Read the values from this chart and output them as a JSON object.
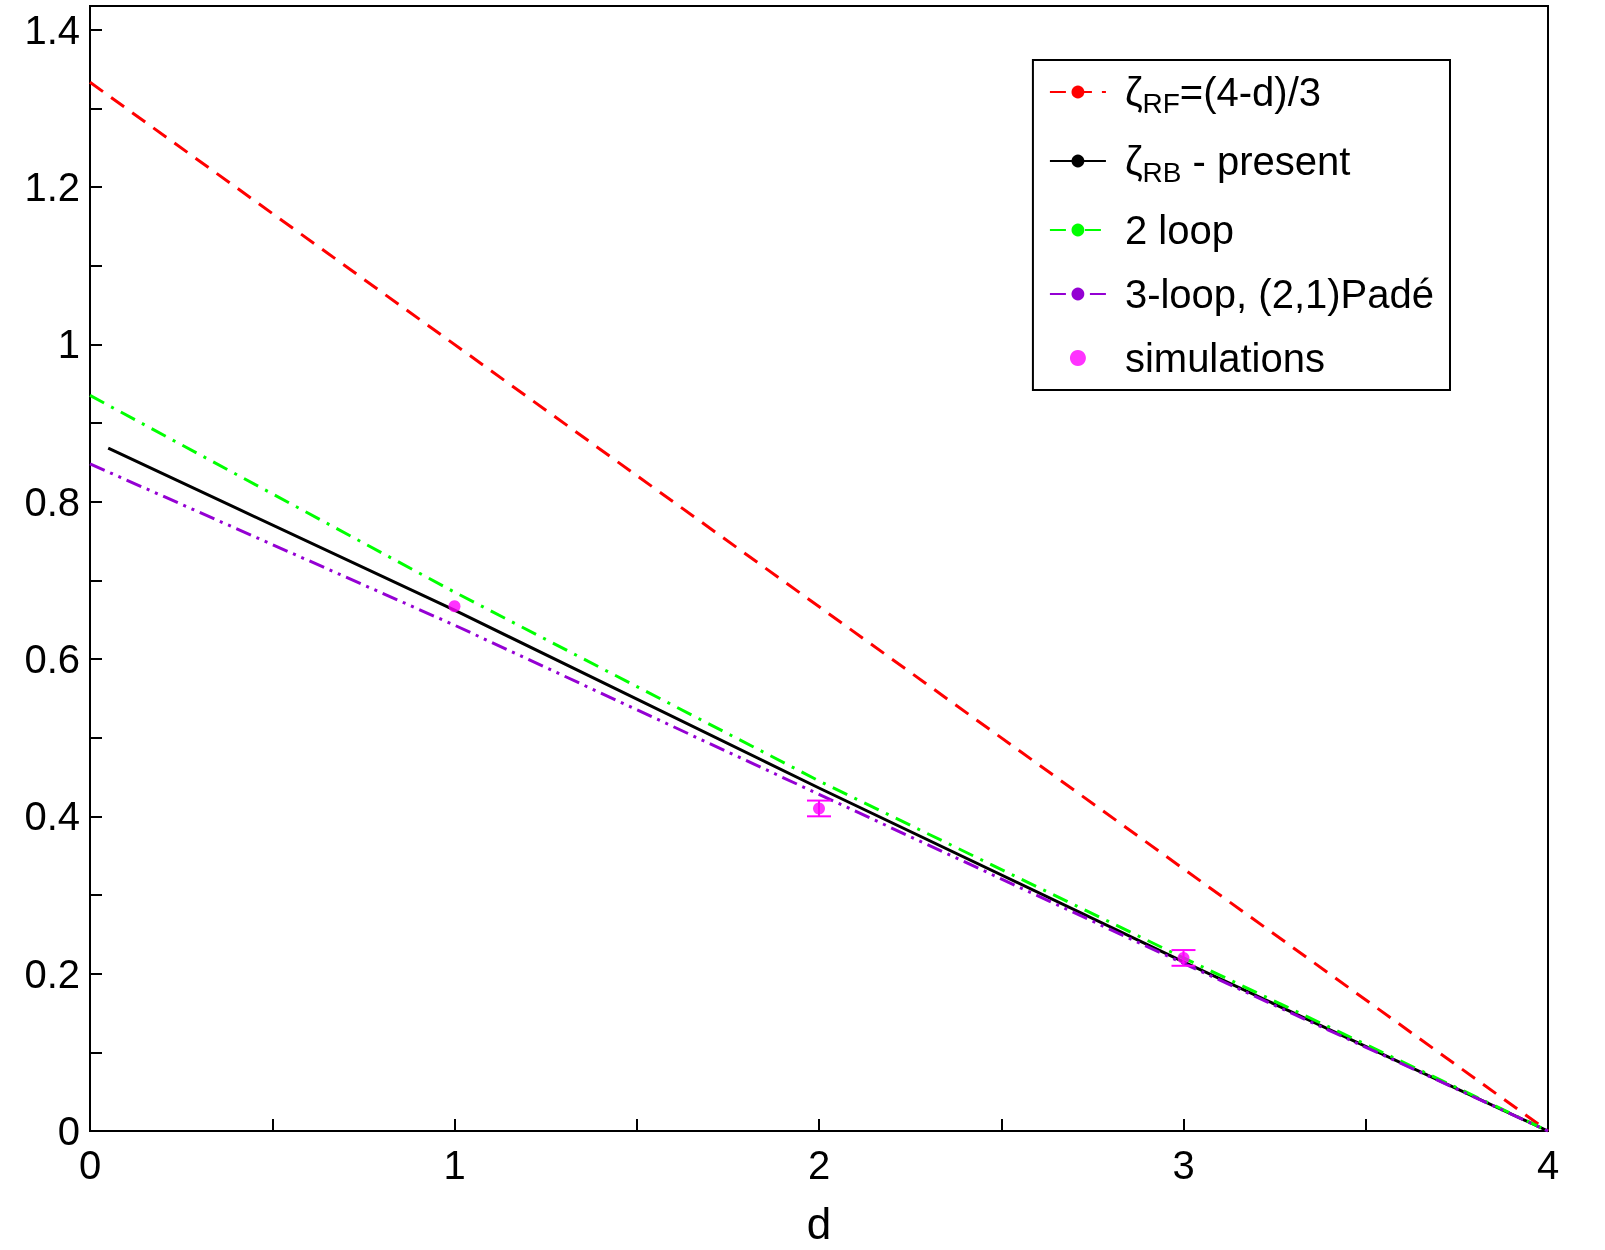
{
  "chart_data": {
    "type": "line",
    "xlabel": "d",
    "xlim": [
      0,
      4
    ],
    "xticks": [
      0,
      {
        "value": 0.5,
        "label": null
      },
      1,
      {
        "value": 1.5,
        "label": null
      },
      2,
      {
        "value": 2.5,
        "label": null
      },
      3,
      {
        "value": 3.5,
        "label": null
      },
      4
    ],
    "ylim": [
      0,
      1.43
    ],
    "yticks": [
      0,
      {
        "value": 0.1,
        "label": null
      },
      0.2,
      {
        "value": 0.3,
        "label": null
      },
      0.4,
      {
        "value": 0.5,
        "label": null
      },
      0.6,
      {
        "value": 0.7,
        "label": null
      },
      0.8,
      {
        "value": 0.9,
        "label": null
      },
      1,
      {
        "value": 1.1,
        "label": null
      },
      1.2,
      {
        "value": 1.3,
        "label": null
      },
      1.4
    ],
    "grid": false,
    "legend": "top right",
    "marker": "none",
    "series": [
      {
        "name": "ζ$_{RF}$=(4-d)/3",
        "color": "#ff0000",
        "line_style": "dashed",
        "x": [
          0,
          4
        ],
        "values": [
          1.333,
          0
        ]
      },
      {
        "name": "ζ$_{RB}$ - present",
        "color": "#000000",
        "line_style": "solid",
        "x": [
          0.05,
          1,
          2,
          3,
          4
        ],
        "values": [
          0.868,
          0.662,
          0.436,
          0.215,
          0
        ]
      },
      {
        "name": "2 loop",
        "color": "#00ff00",
        "line_style": "dashdot",
        "x": [
          0,
          1,
          2,
          3,
          4
        ],
        "values": [
          0.935,
          0.685,
          0.445,
          0.22,
          0
        ]
      },
      {
        "name": "3-loop, (2,1)Padé",
        "color": "#9400d3",
        "line_style": "dashdotdot",
        "x": [
          0,
          1,
          2,
          3,
          4
        ],
        "values": [
          0.848,
          0.643,
          0.428,
          0.213,
          0
        ]
      },
      {
        "name": "simulations",
        "type": "scatter",
        "marker": "circle",
        "color": "#ff00ff",
        "x": [
          1,
          2,
          3
        ],
        "values": [
          0.667,
          0.41,
          0.22
        ],
        "errors": [
          null,
          0.01,
          0.01
        ]
      }
    ]
  }
}
